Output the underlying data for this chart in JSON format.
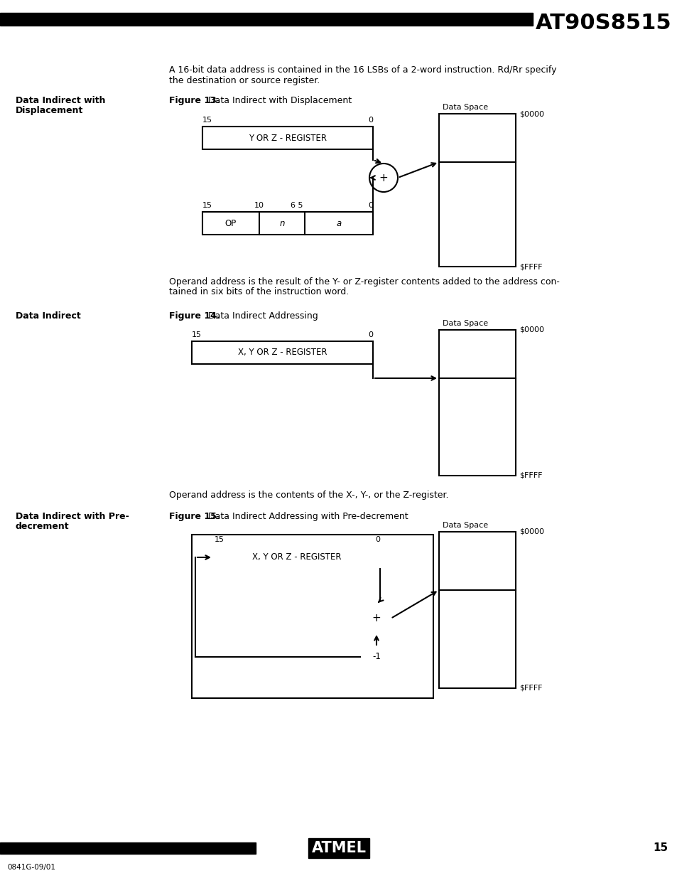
{
  "title": "AT90S8515",
  "page_num": "15",
  "footer_left": "0841G-09/01",
  "intro_text1": "A 16-bit data address is contained in the 16 LSBs of a 2-word instruction. Rd/Rr specify",
  "intro_text2": "the destination or source register.",
  "sec1_label1": "Data Indirect with",
  "sec1_label2": "Displacement",
  "sec1_fig_bold": "Figure 13.",
  "sec1_fig_text": "  Data Indirect with Displacement",
  "sec1_desc1": "Operand address is the result of the Y- or Z-register contents added to the address con-",
  "sec1_desc2": "tained in six bits of the instruction word.",
  "sec2_label": "Data Indirect",
  "sec2_fig_bold": "Figure 14.",
  "sec2_fig_text": "  Data Indirect Addressing",
  "sec2_desc": "Operand address is the contents of the X-, Y-, or the Z-register.",
  "sec3_label1": "Data Indirect with Pre-",
  "sec3_label2": "decrement",
  "sec3_fig_bold": "Figure 15.",
  "sec3_fig_text": "  Data Indirect Addressing with Pre-decrement",
  "ds_label": "Data Space",
  "ds_top": "$0000",
  "ds_bot": "$FFFF",
  "reg1_label": "Y OR Z - REGISTER",
  "reg2_label": "X, Y OR Z - REGISTER",
  "reg3_label": "X, Y OR Z - REGISTER",
  "op_label": "OP",
  "n_label": "n",
  "a_label": "a"
}
